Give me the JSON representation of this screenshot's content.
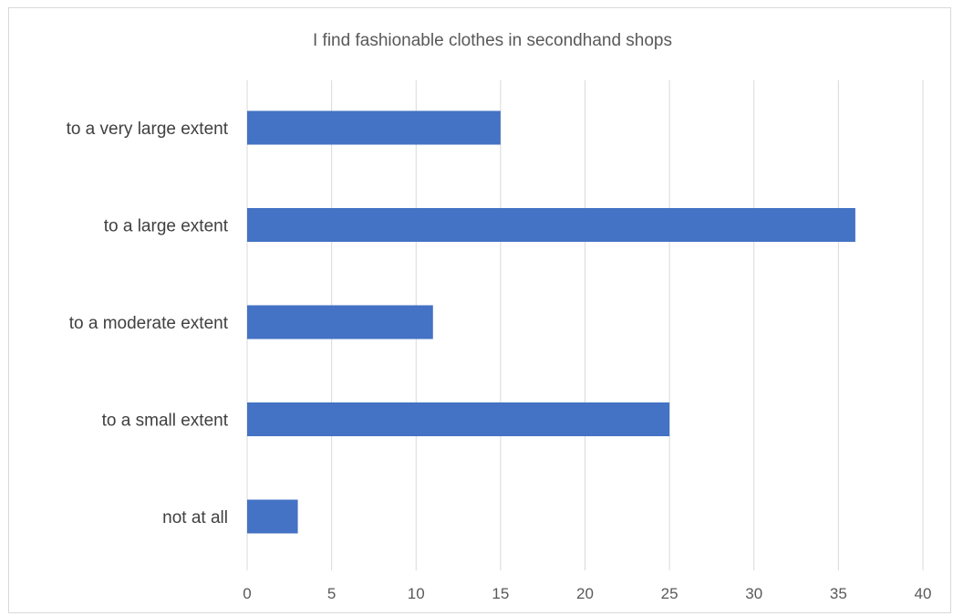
{
  "chart_data": {
    "type": "bar",
    "orientation": "horizontal",
    "title": "I find fashionable clothes in secondhand shops",
    "xlabel": "",
    "ylabel": "",
    "categories": [
      "to a very large extent",
      "to a large extent",
      "to a moderate extent",
      "to a small extent",
      "not at all"
    ],
    "values": [
      15,
      36,
      11,
      25,
      3
    ],
    "xlim": [
      0,
      40
    ],
    "xticks": [
      "0",
      "5",
      "10",
      "15",
      "20",
      "25",
      "30",
      "35",
      "40"
    ],
    "grid": "vertical",
    "legend": "none",
    "bar_color": "#4472c4",
    "grid_color": "#d9d9d9"
  }
}
